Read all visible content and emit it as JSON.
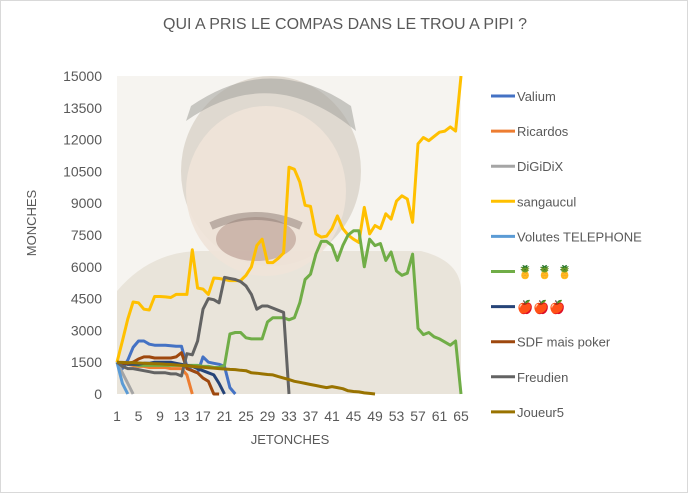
{
  "chart_data": {
    "type": "line",
    "title": "QUI A PRIS LE COMPAS DANS LE TROU A PIPI ?",
    "xlabel": "JETONCHES",
    "ylabel": "MONCHES",
    "ylim": [
      0,
      15000
    ],
    "yticks": [
      0,
      1500,
      3000,
      4500,
      6000,
      7500,
      9000,
      10500,
      12000,
      13500,
      15000
    ],
    "xlim": [
      1,
      65
    ],
    "xticks": [
      1,
      5,
      9,
      13,
      17,
      21,
      25,
      29,
      33,
      37,
      41,
      45,
      49,
      53,
      57,
      61,
      65
    ],
    "legend_position": "right",
    "grid": false,
    "series": [
      {
        "name": "Valium",
        "color": "#4472C4",
        "values": [
          1500,
          1200,
          1600,
          2200,
          2500,
          2500,
          2350,
          2300,
          2300,
          2300,
          2280,
          2250,
          2250,
          1300,
          1100,
          1000,
          1750,
          1500,
          1450,
          1400,
          1300,
          300,
          0
        ]
      },
      {
        "name": "Ricardos",
        "color": "#ED7D31",
        "values": [
          1500,
          1450,
          1400,
          1350,
          1300,
          1300,
          1250,
          1250,
          1250,
          1250,
          1200,
          1200,
          1200,
          900,
          0
        ]
      },
      {
        "name": "DiGiDiX",
        "color": "#A5A5A5",
        "values": [
          1500,
          1000,
          500,
          0
        ]
      },
      {
        "name": "sangaucul",
        "color": "#FFC000",
        "values": [
          1500,
          2500,
          3540,
          4340,
          4300,
          4000,
          3960,
          4600,
          4600,
          4580,
          4550,
          4700,
          4700,
          4700,
          6800,
          5000,
          4950,
          4700,
          5470,
          5450,
          5400,
          5350,
          5350,
          5350,
          5600,
          6000,
          7000,
          7300,
          6200,
          6200,
          6400,
          6650,
          10700,
          10600,
          10000,
          8900,
          8850,
          7550,
          7400,
          7450,
          7800,
          8400,
          7800,
          7500,
          7300,
          7150,
          8800,
          7550,
          7950,
          7800,
          8500,
          8250,
          9100,
          9350,
          9200,
          8100,
          11800,
          12100,
          11950,
          12150,
          12350,
          12400,
          12600,
          12400,
          15000
        ]
      },
      {
        "name": "Volutes TELEPHONE",
        "color": "#5B9BD5",
        "values": [
          1500,
          500,
          0
        ]
      },
      {
        "name": "🍍 🍍 🍍",
        "color": "#70AD47",
        "values": [
          1500,
          1450,
          1400,
          1400,
          1350,
          1350,
          1350,
          1350,
          1350,
          1350,
          1350,
          1350,
          1350,
          1350,
          1350,
          1350,
          1300,
          1300,
          1250,
          1250,
          1350,
          2830,
          2900,
          2900,
          2650,
          2600,
          2600,
          2600,
          3400,
          3600,
          3600,
          3600,
          3500,
          3600,
          4300,
          5400,
          5650,
          6600,
          7200,
          7200,
          7000,
          6300,
          7000,
          7500,
          7700,
          7700,
          6000,
          7300,
          7000,
          7100,
          6300,
          6700,
          5800,
          5600,
          5700,
          6600,
          3100,
          2800,
          2900,
          2700,
          2600,
          2450,
          2300,
          2500,
          0
        ]
      },
      {
        "name": "🍎🍎🍎",
        "color": "#264478",
        "values": [
          1500,
          1450,
          1400,
          1400,
          1400,
          1450,
          1450,
          1500,
          1500,
          1500,
          1500,
          1450,
          1400,
          1350,
          1300,
          1200,
          1100,
          1000,
          900,
          500,
          0
        ]
      },
      {
        "name": "SDF mais poker",
        "color": "#9E480E",
        "values": [
          1500,
          1450,
          1450,
          1500,
          1650,
          1750,
          1750,
          1700,
          1700,
          1700,
          1700,
          1750,
          1950,
          1200,
          1100,
          1000,
          750,
          600,
          0,
          0
        ]
      },
      {
        "name": "Freudien",
        "color": "#636363",
        "values": [
          1500,
          1300,
          1200,
          1200,
          1150,
          1100,
          1050,
          1000,
          1000,
          1000,
          950,
          950,
          850,
          1900,
          1850,
          2500,
          4000,
          4500,
          4450,
          4300,
          5500,
          5450,
          5400,
          5300,
          5100,
          4700,
          4000,
          4150,
          4150,
          4050,
          3950,
          3850,
          0
        ]
      },
      {
        "name": "Joueur5",
        "color": "#997300",
        "values": [
          1500,
          1490,
          1480,
          1470,
          1460,
          1450,
          1440,
          1430,
          1420,
          1400,
          1390,
          1370,
          1350,
          1330,
          1300,
          1280,
          1260,
          1240,
          1220,
          1200,
          1180,
          1160,
          1150,
          1120,
          1100,
          1000,
          980,
          950,
          920,
          900,
          820,
          750,
          680,
          600,
          550,
          500,
          450,
          400,
          350,
          300,
          350,
          300,
          250,
          150,
          120,
          100,
          50,
          30,
          0
        ]
      }
    ]
  }
}
